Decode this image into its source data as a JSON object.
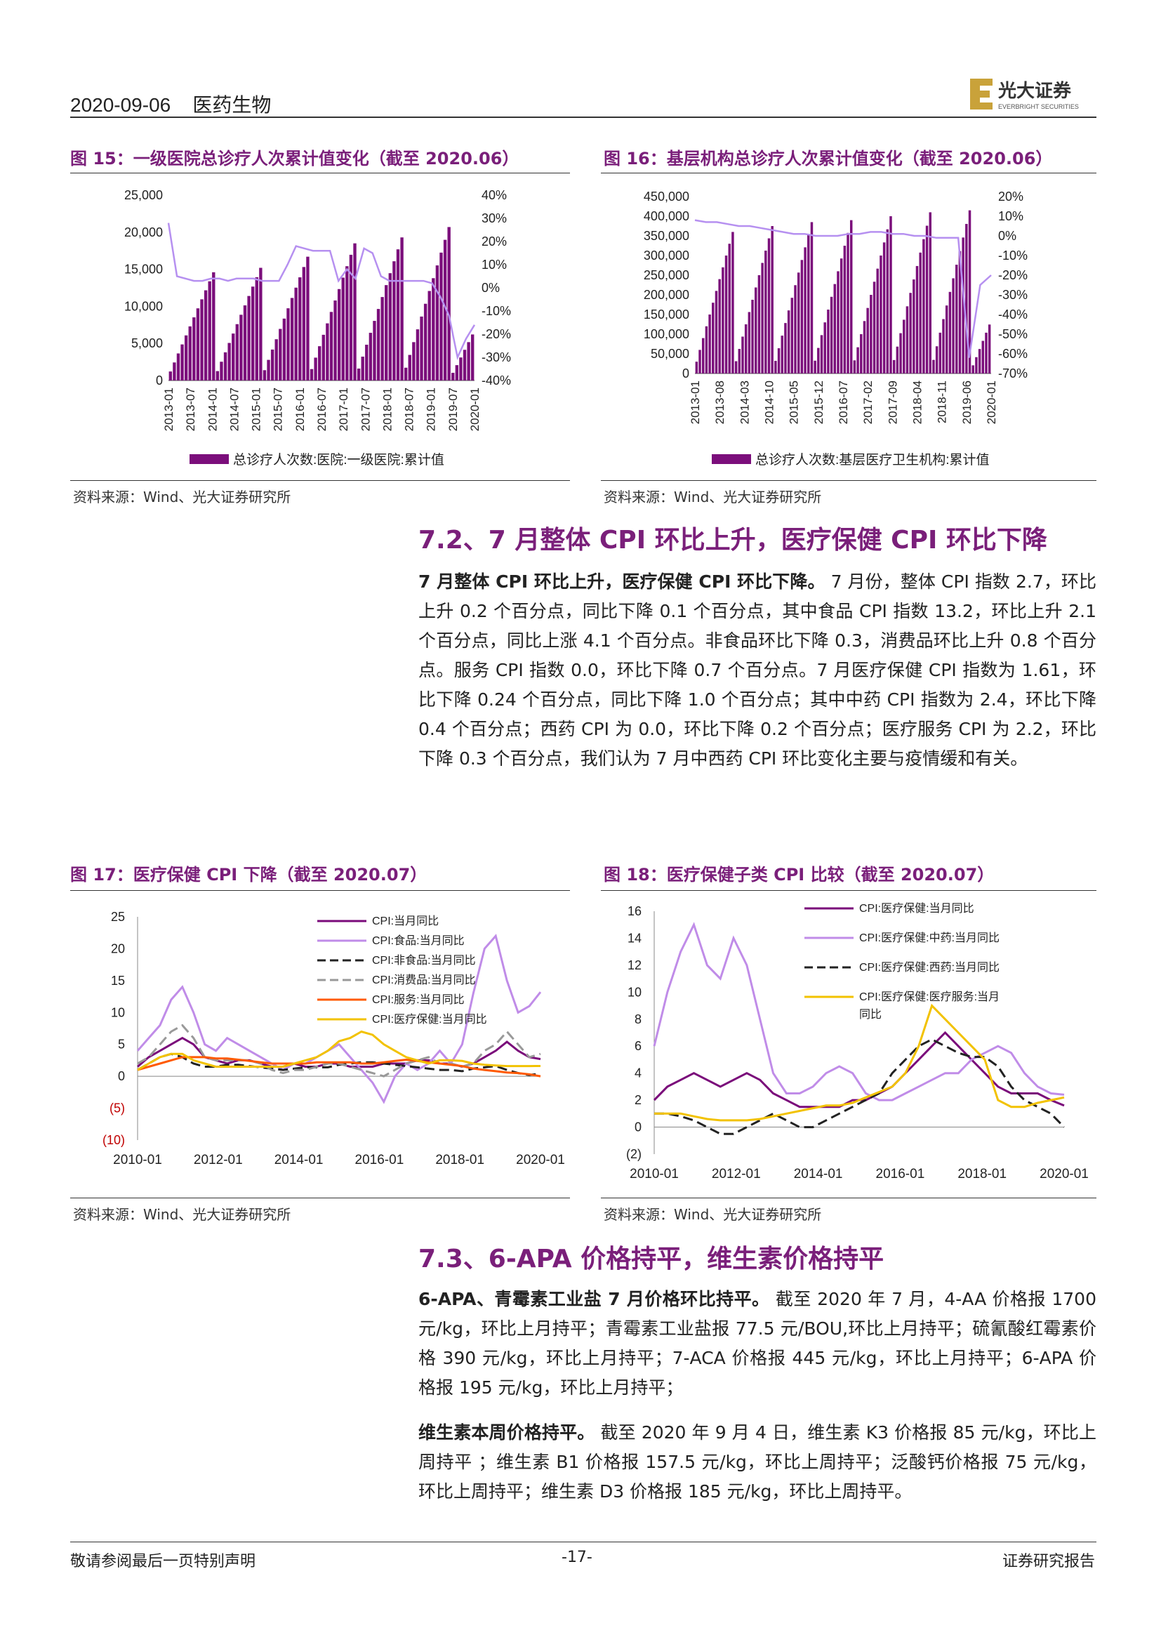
{
  "header": {
    "date_section": "2020-09-06    医药生物",
    "logo_cn": "光大证券",
    "logo_en": "EVERBRIGHT SECURITIES"
  },
  "fig15": {
    "title": "图 15：一级医院总诊疗人次累计值变化（截至 2020.06）",
    "source": "资料来源：Wind、光大证券研究所",
    "chart_data": {
      "type": "bar",
      "left_axis": {
        "ticks": [
          "25,000",
          "20,000",
          "15,000",
          "10,000",
          "5,000",
          "0"
        ],
        "range": [
          0,
          25000
        ]
      },
      "right_axis": {
        "ticks": [
          "40%",
          "30%",
          "20%",
          "10%",
          "0%",
          "-10%",
          "-20%",
          "-30%",
          "-40%"
        ],
        "range": [
          -40,
          40
        ]
      },
      "x_ticks": [
        "2013-01",
        "2013-07",
        "2014-01",
        "2014-07",
        "2015-01",
        "2015-07",
        "2016-01",
        "2016-07",
        "2017-01",
        "2017-07",
        "2018-01",
        "2018-07",
        "2019-01",
        "2019-07",
        "2020-01"
      ],
      "year_peaks": [
        14600,
        15200,
        16700,
        18500,
        19300,
        20700
      ],
      "legend": "总诊疗人次数:医院:一级医院:累计值",
      "line_y": [
        28,
        5,
        4,
        3,
        3,
        4,
        4,
        3,
        4,
        4,
        4,
        3,
        3,
        3,
        10,
        18,
        17,
        16,
        16,
        16,
        3,
        8,
        4,
        17,
        15,
        5,
        3,
        3,
        3,
        3,
        3,
        2,
        -4,
        -12,
        -30,
        -22,
        -16
      ]
    }
  },
  "fig16": {
    "title": "图 16：基层机构总诊疗人次累计值变化（截至 2020.06）",
    "source": "资料来源：Wind、光大证券研究所",
    "chart_data": {
      "type": "bar",
      "left_axis": {
        "ticks": [
          "450,000",
          "400,000",
          "350,000",
          "300,000",
          "250,000",
          "200,000",
          "150,000",
          "100,000",
          "50,000",
          "0"
        ],
        "range": [
          0,
          450000
        ]
      },
      "right_axis": {
        "ticks": [
          "20%",
          "10%",
          "0%",
          "-10%",
          "-20%",
          "-30%",
          "-40%",
          "-50%",
          "-60%",
          "-70%"
        ],
        "range": [
          -70,
          20
        ]
      },
      "x_ticks": [
        "2013-01",
        "2013-08",
        "2014-03",
        "2014-10",
        "2015-05",
        "2015-12",
        "2016-07",
        "2017-02",
        "2017-09",
        "2018-04",
        "2018-11",
        "2019-06",
        "2020-01"
      ],
      "year_peaks": [
        360000,
        375000,
        385000,
        390000,
        400000,
        410000,
        415000
      ],
      "legend": "总诊疗人次数:基层医疗卫生机构:累计值",
      "line_y": [
        8,
        7,
        7,
        6,
        5,
        5,
        4,
        3,
        2,
        1,
        1,
        0,
        0,
        0,
        1,
        1,
        2,
        2,
        1,
        1,
        0,
        0,
        -1,
        -1,
        -1,
        -62,
        -25,
        -20
      ]
    }
  },
  "sec72": {
    "title": "7.2、7 月整体 CPI 环比上升，医疗保健 CPI 环比下降",
    "bold": "7 月整体 CPI 环比上升，医疗保健 CPI 环比下降。",
    "body": "7 月份，整体 CPI 指数 2.7，环比上升 0.2 个百分点，同比下降 0.1 个百分点，其中食品 CPI 指数 13.2，环比上升 2.1 个百分点，同比上涨 4.1 个百分点。非食品环比下降 0.3，消费品环比上升 0.8 个百分点。服务 CPI 指数 0.0，环比下降 0.7 个百分点。7 月医疗保健 CPI 指数为 1.61，环比下降 0.24 个百分点，同比下降 1.0 个百分点；其中中药 CPI 指数为 2.4，环比下降 0.4 个百分点；西药 CPI 为 0.0，环比下降 0.2 个百分点；医疗服务 CPI 为 2.2，环比下降 0.3 个百分点，我们认为 7 月中西药 CPI 环比变化主要与疫情缓和有关。"
  },
  "fig17": {
    "title": "图 17：医疗保健 CPI 下降（截至 2020.07）",
    "source": "资料来源：Wind、光大证券研究所",
    "chart_data": {
      "type": "line",
      "y_ticks": [
        "25",
        "20",
        "15",
        "10",
        "5",
        "0",
        "(5)",
        "(10)"
      ],
      "ylim": [
        -10,
        25
      ],
      "x_ticks": [
        "2010-01",
        "2012-01",
        "2014-01",
        "2016-01",
        "2018-01",
        "2020-01"
      ],
      "series": [
        {
          "name": "CPI:当月同比",
          "color": "#7a0a7a",
          "style": "solid",
          "y": [
            1.5,
            3,
            4,
            5,
            6,
            5,
            3,
            2.5,
            2,
            2.5,
            2.5,
            2,
            1.5,
            1.5,
            2,
            1.5,
            1.5,
            2,
            2,
            1.5,
            1.5,
            1.5,
            2,
            2,
            2,
            2.5,
            2.5,
            2,
            2,
            1.5,
            2,
            3,
            4,
            5.4,
            4,
            3,
            2.7
          ]
        },
        {
          "name": "CPI:食品:当月同比",
          "color": "#c08ce8",
          "style": "solid",
          "y": [
            4,
            6,
            8,
            12,
            14,
            10,
            5,
            4,
            6,
            5,
            4,
            3,
            2,
            1,
            2,
            2,
            3,
            4,
            5,
            3,
            1,
            -1,
            -4,
            0,
            2,
            1,
            2,
            4,
            2,
            5,
            13,
            20,
            22,
            15,
            10,
            11,
            13.2
          ]
        },
        {
          "name": "CPI:非食品:当月同比",
          "color": "#222222",
          "style": "dash",
          "y": [
            1,
            2,
            3,
            3.5,
            3,
            2,
            1.5,
            1.5,
            1.8,
            1.8,
            1.6,
            1.4,
            1.2,
            1,
            1.2,
            1.4,
            1.4,
            1.4,
            1.8,
            2,
            2.2,
            2.2,
            2,
            1.8,
            1.6,
            1.4,
            1.2,
            1,
            1,
            0.8,
            1.2,
            1.4,
            1.6,
            1,
            0.5,
            0.2,
            0.4
          ]
        },
        {
          "name": "CPI:消费品:当月同比",
          "color": "#999999",
          "style": "dash",
          "y": [
            2,
            3,
            5,
            7,
            8,
            6,
            3,
            2.5,
            2.5,
            2.5,
            2.5,
            2,
            1,
            0.5,
            1,
            1,
            1.5,
            2,
            2,
            1.5,
            1,
            0.5,
            0,
            1,
            2,
            2.5,
            3,
            2,
            2,
            1.5,
            2,
            4,
            5,
            7,
            5,
            3,
            3.5
          ]
        },
        {
          "name": "CPI:服务:当月同比",
          "color": "#ff5a00",
          "style": "solid",
          "y": [
            1,
            1.5,
            2,
            2.5,
            3,
            3,
            3,
            2.8,
            2.8,
            2.6,
            2.4,
            2.2,
            2,
            2,
            2,
            2,
            2.2,
            2.2,
            2.2,
            2.2,
            2,
            2,
            2.2,
            2.4,
            2.6,
            2.4,
            2.2,
            2,
            1.8,
            1.6,
            1.2,
            1,
            0.8,
            0.6,
            0.5,
            0.3,
            0
          ]
        },
        {
          "name": "CPI:医疗保健:当月同比",
          "color": "#f2c200",
          "style": "solid",
          "y": [
            1,
            2,
            3,
            3.5,
            3.5,
            2.5,
            2,
            1.5,
            1.5,
            1.5,
            1.5,
            1.5,
            1.5,
            1.5,
            2,
            2.5,
            3,
            4,
            5.5,
            6,
            7,
            6.5,
            5,
            4,
            3,
            2.5,
            2,
            2.5,
            2.5,
            2.4,
            2,
            1.8,
            1.7,
            1.6,
            1.6,
            1.6,
            1.61
          ]
        }
      ]
    }
  },
  "fig18": {
    "title": "图 18：医疗保健子类 CPI 比较（截至 2020.07）",
    "source": "资料来源：Wind、光大证券研究所",
    "chart_data": {
      "type": "line",
      "y_ticks": [
        "16",
        "14",
        "12",
        "10",
        "8",
        "6",
        "4",
        "2",
        "0",
        "(2)"
      ],
      "ylim": [
        -2,
        16
      ],
      "x_ticks": [
        "2010-01",
        "2012-01",
        "2014-01",
        "2016-01",
        "2018-01",
        "2020-01"
      ],
      "series": [
        {
          "name": "CPI:医疗保健:当月同比",
          "color": "#7a0a7a",
          "style": "solid",
          "y": [
            2,
            3,
            3.5,
            4,
            3.5,
            3,
            3.5,
            4,
            3.5,
            2.5,
            2,
            1.5,
            1.5,
            1.5,
            1.5,
            2,
            2,
            2.5,
            3,
            4,
            5,
            6,
            7,
            6,
            5,
            4,
            3,
            2.5,
            2.5,
            2.5,
            2,
            1.6
          ]
        },
        {
          "name": "CPI:医疗保健:中药:当月同比",
          "color": "#c08ce8",
          "style": "solid",
          "y": [
            6,
            10,
            13,
            15,
            12,
            11,
            14,
            12,
            8,
            4,
            2.5,
            2.5,
            3,
            4,
            4.5,
            4,
            2.5,
            2,
            2,
            2.5,
            3,
            3.5,
            4,
            4,
            5,
            5.5,
            6,
            5.5,
            4,
            3,
            2.5,
            2.4
          ]
        },
        {
          "name": "CPI:医疗保健:西药:当月同比",
          "color": "#222222",
          "style": "dash",
          "y": [
            1,
            1,
            0.8,
            0.5,
            0,
            -0.5,
            -0.5,
            0,
            0.5,
            1,
            0.5,
            0,
            0,
            0.5,
            1,
            1.5,
            2,
            2.5,
            4,
            5,
            6,
            6.5,
            6,
            5.5,
            5.2,
            5.2,
            4.5,
            3,
            2,
            1.5,
            1,
            0
          ]
        },
        {
          "name": "CPI:医疗保健:医疗服务:当月同比",
          "color": "#f2c200",
          "style": "solid",
          "y": [
            1,
            1,
            1,
            0.8,
            0.6,
            0.5,
            0.5,
            0.5,
            0.6,
            0.8,
            1,
            1.2,
            1.4,
            1.6,
            1.6,
            1.8,
            2.2,
            2.6,
            3,
            4,
            6,
            9,
            8,
            7,
            6,
            5,
            2,
            1.5,
            1.5,
            1.8,
            2,
            2.2
          ]
        }
      ],
      "legend_labels": [
        "CPI:医疗保健:当月同比",
        "CPI:医疗保健:中药:当月同比",
        "CPI:医疗保健:西药:当月同比",
        "CPI:医疗保健:医疗服务:当月",
        "同比"
      ]
    }
  },
  "sec73": {
    "title": "7.3、6-APA 价格持平，维生素价格持平",
    "p1_bold": "6-APA、青霉素工业盐 7 月价格环比持平。",
    "p1_body": "截至 2020 年 7 月，4-AA 价格报 1700 元/kg，环比上月持平；青霉素工业盐报 77.5 元/BOU,环比上月持平；硫氰酸红霉素价格 390 元/kg，环比上月持平；7-ACA 价格报 445 元/kg，环比上月持平；6-APA 价格报 195 元/kg，环比上月持平；",
    "p2_bold": "维生素本周价格持平。",
    "p2_body": "截至 2020 年 9 月 4 日，维生素 K3 价格报 85 元/kg，环比上周持平 ；维生素 B1 价格报 157.5 元/kg，环比上周持平；泛酸钙价格报 75 元/kg，环比上周持平；维生素 D3 价格报 185 元/kg，环比上周持平。"
  },
  "footer": {
    "left": "敬请参阅最后一页特别声明",
    "center": "-17-",
    "right": "证券研究报告"
  }
}
